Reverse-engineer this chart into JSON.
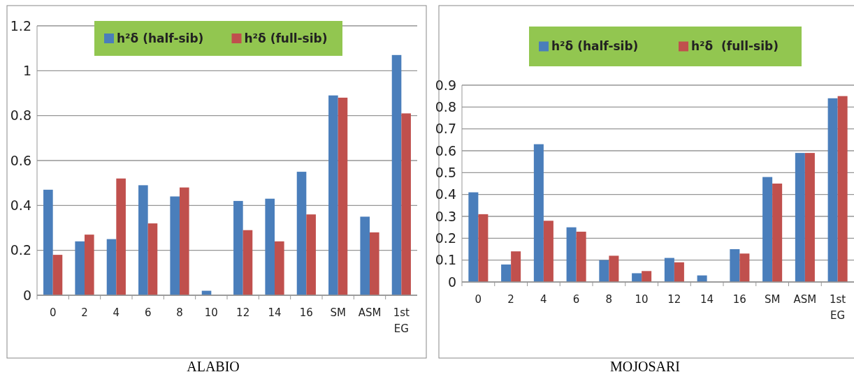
{
  "chart_data": [
    {
      "type": "bar",
      "xlabel": "ALABIO",
      "categories": [
        "0",
        "2",
        "4",
        "6",
        "8",
        "10",
        "12",
        "14",
        "16",
        "SM",
        "ASM",
        "1st EG"
      ],
      "series": [
        {
          "name": "h²δ (half-sib)",
          "color": "#4a7ebb",
          "values": [
            0.47,
            0.24,
            0.25,
            0.49,
            0.44,
            0.02,
            0.42,
            0.43,
            0.55,
            0.89,
            0.35,
            1.07
          ]
        },
        {
          "name": "h²δ (full-sib)",
          "color": "#c0504d",
          "values": [
            0.18,
            0.27,
            0.52,
            0.32,
            0.48,
            0,
            0.29,
            0.24,
            0.36,
            0.88,
            0.28,
            0.81
          ]
        }
      ],
      "ylim": [
        0,
        1.2
      ],
      "yticks": [
        {
          "value": 0,
          "label": "0"
        },
        {
          "value": 0.2,
          "label": "0.2"
        },
        {
          "value": 0.4,
          "label": "0.4"
        },
        {
          "value": 0.6,
          "label": "0.6"
        },
        {
          "value": 0.8,
          "label": "0.8"
        },
        {
          "value": 1,
          "label": "1"
        },
        {
          "value": 1.2,
          "label": "1.2"
        }
      ],
      "grid": "y",
      "legend": "top"
    },
    {
      "type": "bar",
      "xlabel": "MOJOSARI",
      "categories": [
        "0",
        "2",
        "4",
        "6",
        "8",
        "10",
        "12",
        "14",
        "16",
        "SM",
        "ASM",
        "1st EG"
      ],
      "series": [
        {
          "name": "h²δ (half-sib)",
          "color": "#4a7ebb",
          "values": [
            0.41,
            0.08,
            0.63,
            0.25,
            0.1,
            0.04,
            0.11,
            0.03,
            0.15,
            0.48,
            0.59,
            0.84
          ]
        },
        {
          "name": "h²δ  (full-sib)",
          "color": "#c0504d",
          "values": [
            0.31,
            0.14,
            0.28,
            0.23,
            0.12,
            0.05,
            0.09,
            0,
            0.13,
            0.45,
            0.59,
            0.85
          ]
        }
      ],
      "ylim": [
        0,
        0.9
      ],
      "yticks": [
        {
          "value": 0,
          "label": "0"
        },
        {
          "value": 0.1,
          "label": "0.1"
        },
        {
          "value": 0.2,
          "label": "0.2"
        },
        {
          "value": 0.3,
          "label": "0.3"
        },
        {
          "value": 0.4,
          "label": "0.4"
        },
        {
          "value": 0.5,
          "label": "0.5"
        },
        {
          "value": 0.6,
          "label": "0.6"
        },
        {
          "value": 0.7,
          "label": "0.7"
        },
        {
          "value": 0.8,
          "label": "0.8"
        },
        {
          "value": 0.9,
          "label": "0.9"
        }
      ],
      "grid": "y",
      "legend": "top"
    }
  ]
}
